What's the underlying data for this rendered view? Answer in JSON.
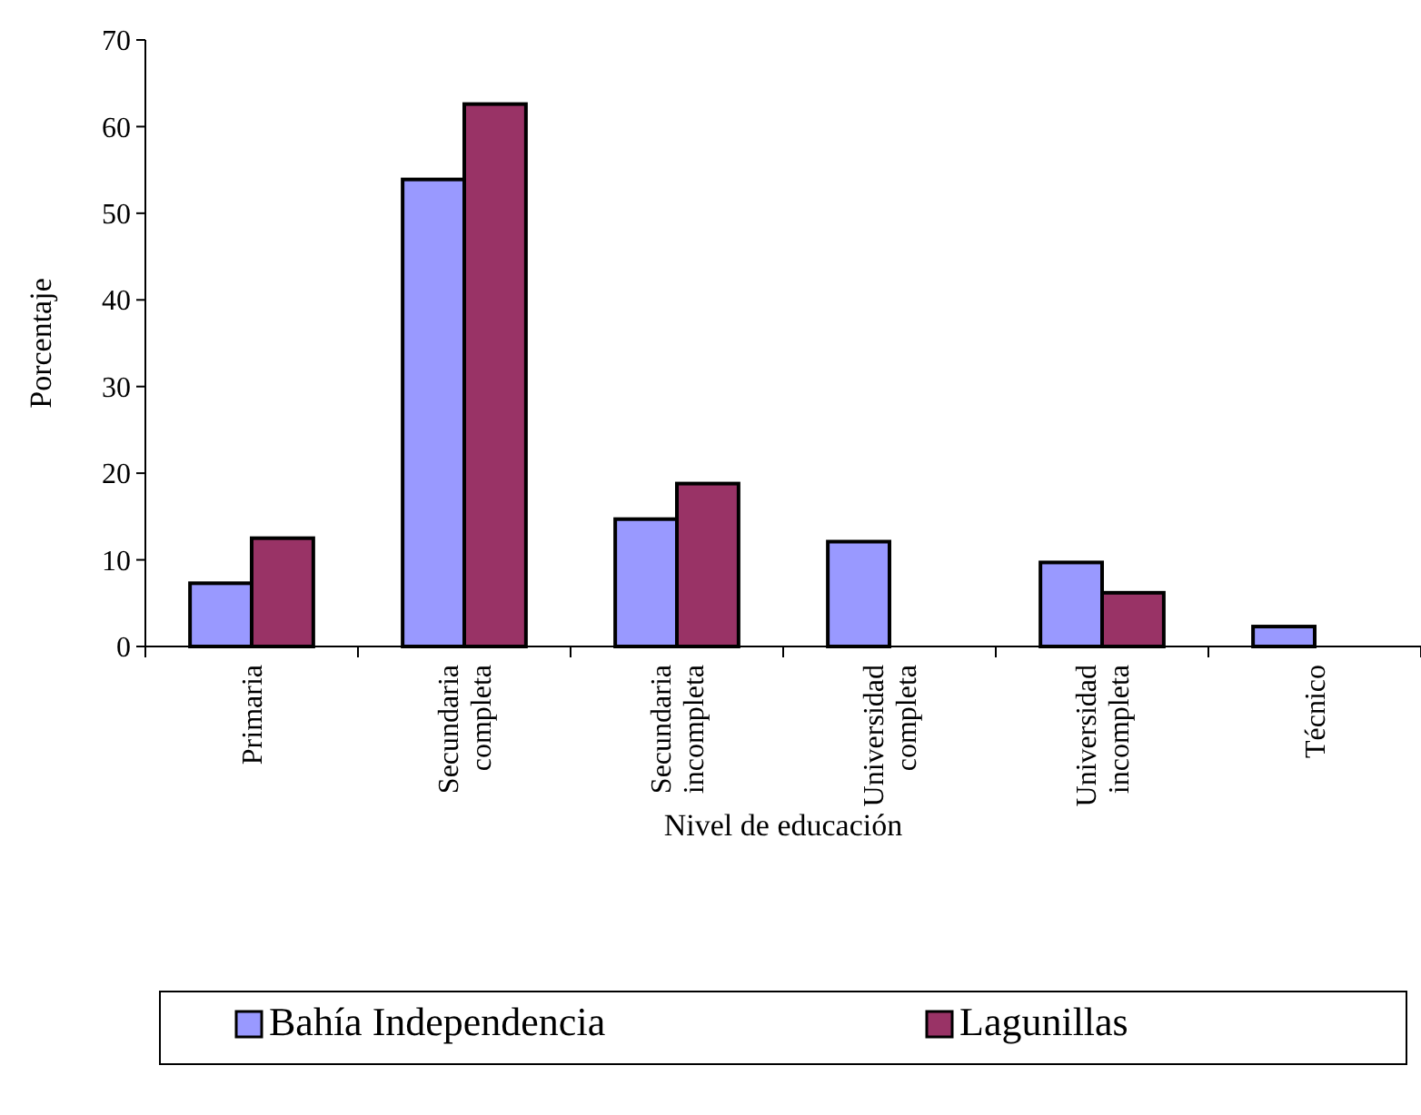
{
  "chart_data": {
    "type": "bar",
    "xlabel": "Nivel de educación",
    "ylabel": "Porcentaje",
    "categories": [
      "Primaria",
      "Secundaria completa",
      "Secundaria incompleta",
      "Universidad completa",
      "Universidad incompleta",
      "Técnico"
    ],
    "series": [
      {
        "name": "Bahía Independencia",
        "color": "#9999ff",
        "values": [
          7.3,
          53.9,
          14.7,
          12.1,
          9.7,
          2.3
        ]
      },
      {
        "name": "Lagunillas",
        "color": "#993366",
        "values": [
          12.5,
          62.6,
          18.8,
          null,
          6.2,
          null
        ]
      }
    ],
    "ylim": [
      0,
      70
    ],
    "yticks": [
      0,
      10,
      20,
      30,
      40,
      50,
      60,
      70
    ],
    "grid": false,
    "legend": "bottom"
  }
}
